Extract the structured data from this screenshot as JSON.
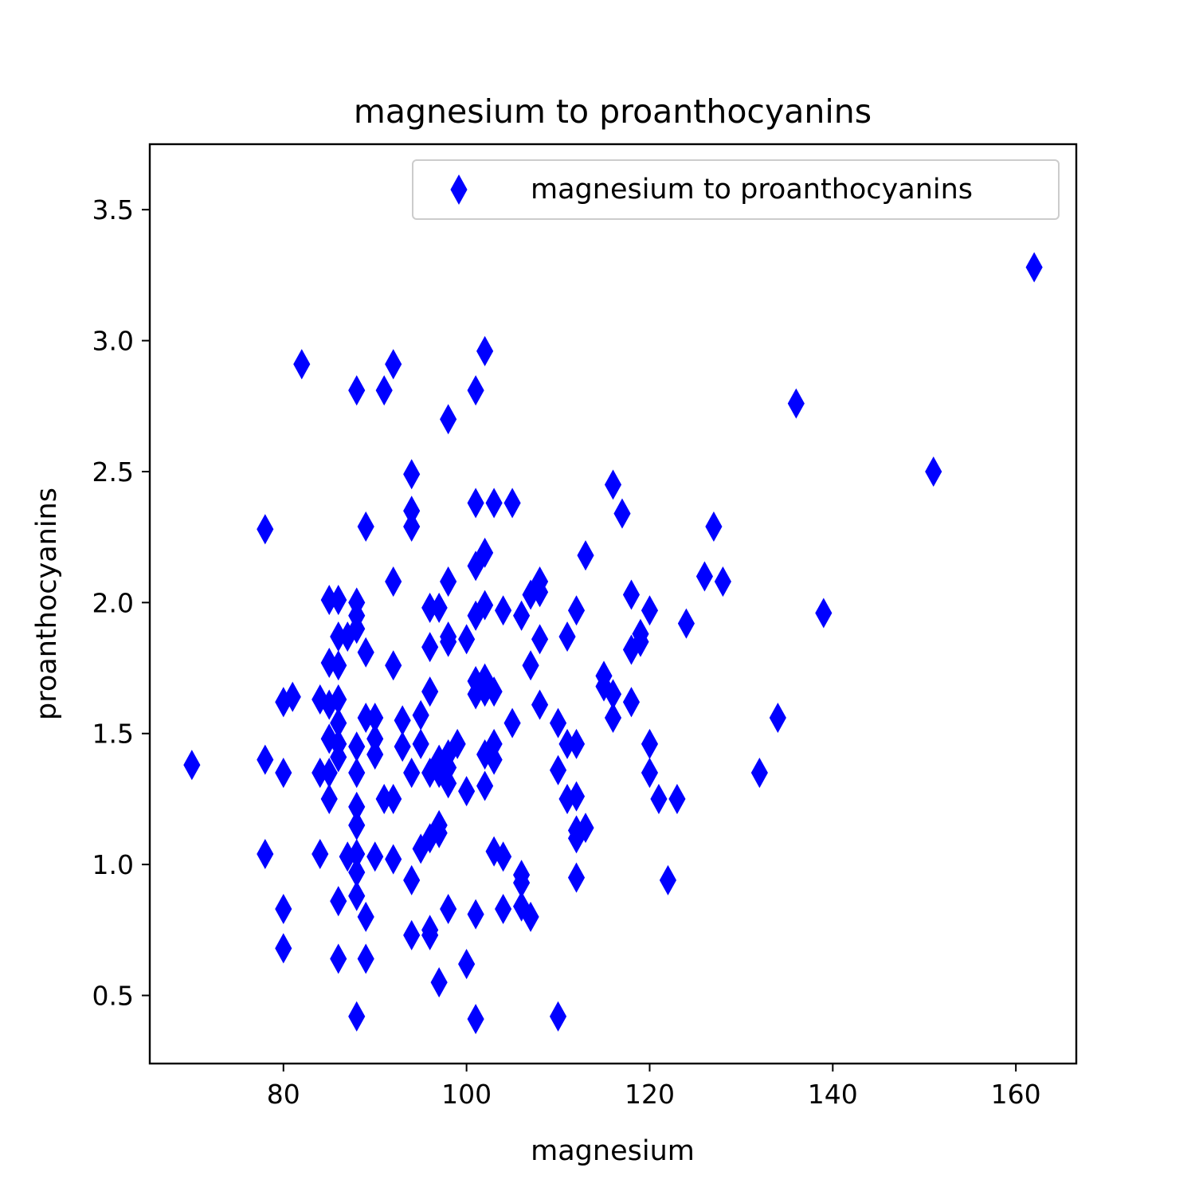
{
  "chart_data": {
    "type": "scatter",
    "title": "magnesium to proanthocyanins",
    "xlabel": "magnesium",
    "ylabel": "proanthocyanins",
    "xlim": [
      65.4,
      166.6
    ],
    "ylim": [
      0.24,
      3.75
    ],
    "xticks": [
      80,
      100,
      120,
      140,
      160
    ],
    "xtick_labels": [
      "80",
      "100",
      "120",
      "140",
      "160"
    ],
    "yticks": [
      0.5,
      1.0,
      1.5,
      2.0,
      2.5,
      3.0,
      3.5
    ],
    "ytick_labels": [
      "0.5",
      "1.0",
      "1.5",
      "2.0",
      "2.5",
      "3.0",
      "3.5"
    ],
    "grid": false,
    "legend": {
      "position": "top-right",
      "entries": [
        "magnesium to proanthocyanins"
      ]
    },
    "marker": "thin-diamond",
    "color": "#0000ff",
    "series": [
      {
        "name": "magnesium to proanthocyanins",
        "points": [
          [
            70,
            1.38
          ],
          [
            78,
            2.28
          ],
          [
            78,
            1.4
          ],
          [
            78,
            1.04
          ],
          [
            80,
            1.62
          ],
          [
            80,
            1.35
          ],
          [
            80,
            0.83
          ],
          [
            80,
            0.68
          ],
          [
            81,
            1.64
          ],
          [
            82,
            2.91
          ],
          [
            84,
            1.63
          ],
          [
            84,
            1.35
          ],
          [
            84,
            1.04
          ],
          [
            85,
            2.01
          ],
          [
            85,
            1.77
          ],
          [
            85,
            1.61
          ],
          [
            85,
            1.48
          ],
          [
            85,
            1.35
          ],
          [
            85,
            1.25
          ],
          [
            86,
            2.01
          ],
          [
            86,
            1.87
          ],
          [
            86,
            1.76
          ],
          [
            86,
            1.63
          ],
          [
            86,
            1.54
          ],
          [
            86,
            1.46
          ],
          [
            86,
            1.41
          ],
          [
            86,
            0.86
          ],
          [
            86,
            0.64
          ],
          [
            87,
            1.87
          ],
          [
            87,
            1.03
          ],
          [
            88,
            2.81
          ],
          [
            88,
            2.0
          ],
          [
            88,
            1.95
          ],
          [
            88,
            1.9
          ],
          [
            88,
            1.45
          ],
          [
            88,
            1.35
          ],
          [
            88,
            1.22
          ],
          [
            88,
            1.15
          ],
          [
            88,
            1.04
          ],
          [
            88,
            0.97
          ],
          [
            88,
            0.88
          ],
          [
            88,
            0.42
          ],
          [
            89,
            2.29
          ],
          [
            89,
            1.81
          ],
          [
            89,
            1.56
          ],
          [
            89,
            0.8
          ],
          [
            89,
            0.64
          ],
          [
            90,
            1.56
          ],
          [
            90,
            1.48
          ],
          [
            90,
            1.42
          ],
          [
            90,
            1.03
          ],
          [
            91,
            2.81
          ],
          [
            91,
            1.25
          ],
          [
            92,
            2.91
          ],
          [
            92,
            2.08
          ],
          [
            92,
            1.76
          ],
          [
            92,
            1.25
          ],
          [
            92,
            1.02
          ],
          [
            93,
            1.55
          ],
          [
            93,
            1.45
          ],
          [
            94,
            2.49
          ],
          [
            94,
            2.35
          ],
          [
            94,
            2.29
          ],
          [
            94,
            1.35
          ],
          [
            94,
            0.94
          ],
          [
            94,
            0.73
          ],
          [
            95,
            1.57
          ],
          [
            95,
            1.46
          ],
          [
            95,
            1.06
          ],
          [
            96,
            1.98
          ],
          [
            96,
            1.83
          ],
          [
            96,
            1.66
          ],
          [
            96,
            1.35
          ],
          [
            96,
            1.1
          ],
          [
            96,
            0.75
          ],
          [
            96,
            0.73
          ],
          [
            97,
            1.98
          ],
          [
            97,
            1.4
          ],
          [
            97,
            1.35
          ],
          [
            97,
            1.15
          ],
          [
            97,
            1.12
          ],
          [
            97,
            0.55
          ],
          [
            98,
            2.7
          ],
          [
            98,
            2.08
          ],
          [
            98,
            1.87
          ],
          [
            98,
            1.85
          ],
          [
            98,
            1.42
          ],
          [
            98,
            1.37
          ],
          [
            98,
            1.31
          ],
          [
            98,
            0.83
          ],
          [
            99,
            1.46
          ],
          [
            100,
            1.86
          ],
          [
            100,
            1.28
          ],
          [
            100,
            0.62
          ],
          [
            101,
            2.81
          ],
          [
            101,
            2.38
          ],
          [
            101,
            2.14
          ],
          [
            101,
            1.95
          ],
          [
            101,
            1.7
          ],
          [
            101,
            1.65
          ],
          [
            101,
            0.81
          ],
          [
            101,
            0.41
          ],
          [
            102,
            2.96
          ],
          [
            102,
            2.19
          ],
          [
            102,
            1.99
          ],
          [
            102,
            1.71
          ],
          [
            102,
            1.66
          ],
          [
            102,
            1.42
          ],
          [
            102,
            1.3
          ],
          [
            103,
            2.38
          ],
          [
            103,
            1.66
          ],
          [
            103,
            1.46
          ],
          [
            103,
            1.4
          ],
          [
            103,
            1.05
          ],
          [
            104,
            1.97
          ],
          [
            104,
            1.03
          ],
          [
            104,
            0.83
          ],
          [
            105,
            2.38
          ],
          [
            105,
            1.54
          ],
          [
            106,
            1.95
          ],
          [
            106,
            0.96
          ],
          [
            106,
            0.93
          ],
          [
            106,
            0.84
          ],
          [
            107,
            2.03
          ],
          [
            107,
            1.76
          ],
          [
            107,
            0.8
          ],
          [
            108,
            2.08
          ],
          [
            108,
            2.04
          ],
          [
            108,
            1.86
          ],
          [
            108,
            1.61
          ],
          [
            110,
            1.54
          ],
          [
            110,
            1.36
          ],
          [
            110,
            0.42
          ],
          [
            111,
            1.87
          ],
          [
            111,
            1.46
          ],
          [
            111,
            1.25
          ],
          [
            112,
            1.97
          ],
          [
            112,
            1.46
          ],
          [
            112,
            1.26
          ],
          [
            112,
            1.13
          ],
          [
            112,
            1.1
          ],
          [
            112,
            0.95
          ],
          [
            113,
            2.18
          ],
          [
            113,
            1.14
          ],
          [
            115,
            1.72
          ],
          [
            115,
            1.68
          ],
          [
            116,
            2.45
          ],
          [
            116,
            1.65
          ],
          [
            116,
            1.56
          ],
          [
            117,
            2.34
          ],
          [
            118,
            2.03
          ],
          [
            118,
            1.82
          ],
          [
            118,
            1.62
          ],
          [
            119,
            1.85
          ],
          [
            119,
            1.88
          ],
          [
            120,
            1.97
          ],
          [
            120,
            1.46
          ],
          [
            120,
            1.35
          ],
          [
            121,
            1.25
          ],
          [
            122,
            0.94
          ],
          [
            123,
            1.25
          ],
          [
            124,
            1.92
          ],
          [
            126,
            2.1
          ],
          [
            127,
            2.29
          ],
          [
            128,
            2.08
          ],
          [
            132,
            1.35
          ],
          [
            134,
            1.56
          ],
          [
            136,
            2.76
          ],
          [
            139,
            1.96
          ],
          [
            151,
            2.5
          ],
          [
            162,
            3.28
          ]
        ]
      }
    ]
  }
}
